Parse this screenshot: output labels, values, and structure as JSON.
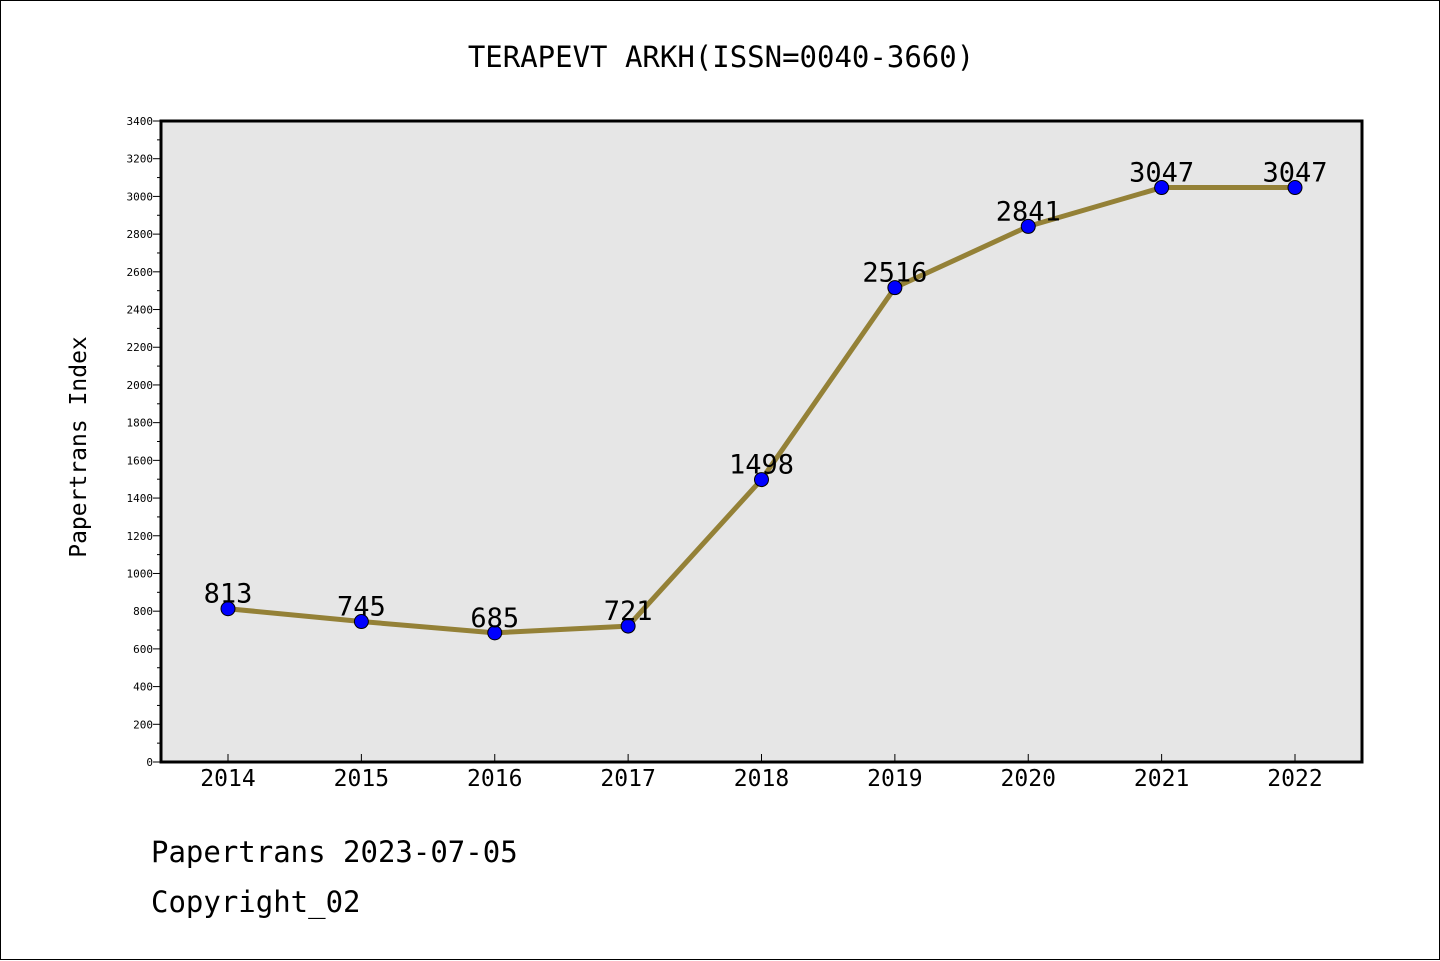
{
  "chart_data": {
    "type": "line",
    "title": "TERAPEVT ARKH(ISSN=0040-3660)",
    "xlabel": "",
    "ylabel": "Papertrans Index",
    "categories": [
      "2014",
      "2015",
      "2016",
      "2017",
      "2018",
      "2019",
      "2020",
      "2021",
      "2022"
    ],
    "series": [
      {
        "values": [
          813,
          745,
          685,
          721,
          1498,
          2516,
          2841,
          3047,
          3047
        ]
      }
    ],
    "ylim": [
      0,
      3400
    ],
    "yticks": [
      0,
      200,
      400,
      600,
      800,
      1000,
      1200,
      1400,
      1600,
      1800,
      2000,
      2200,
      2400,
      2600,
      2800,
      3000,
      3200,
      3400
    ],
    "grid": false,
    "legend": "none",
    "colors": {
      "line": "#948137",
      "marker": "#0000ff",
      "plot_background": "#e6e6e6",
      "frame": "#000000"
    }
  },
  "footer": {
    "date_line": "Papertrans 2023-07-05",
    "copyright": "Copyright_02"
  }
}
